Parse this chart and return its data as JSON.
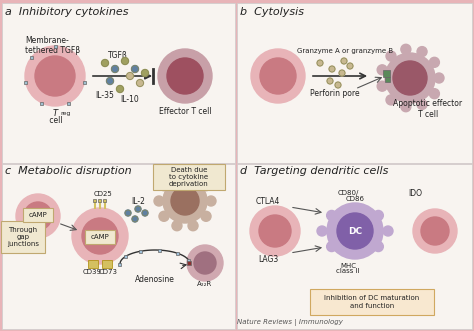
{
  "bg_color": "#f5f0eb",
  "panel_bg": "#f5f0eb",
  "title_fontsize": 8,
  "label_fontsize": 6.5,
  "small_fontsize": 5.5,
  "panels": {
    "a": {
      "title": "a  Inhibitory cytokines",
      "treg_label": "T",
      "treg_sub": "reg",
      "treg_label2": " cell",
      "effector_label": "Effector T cell",
      "membrane_label": "Membrane-\ntethered TGFβ",
      "tgfb_label": "TGFβ",
      "il35_label": "IL-35",
      "il10_label": "IL-10"
    },
    "b": {
      "title": "b  Cytolysis",
      "granzyme_label": "Granzyme A or granzyme B",
      "perforin_label": "Perforin pore",
      "apoptotic_label": "Apoptotic effector\nT cell"
    },
    "c": {
      "title": "c  Metabolic disruption",
      "camp_label": "cAMP",
      "gap_label": "Through\ngap\njunctions",
      "cd25_label": "CD25",
      "cd39_label": "CD39",
      "cd73_label": "CD73",
      "il2_label": "IL-2",
      "a2ar_label": "A₂₂R",
      "adenosine_label": "Adenosine",
      "death_label": "Death due\nto cytokine\ndeprivation"
    },
    "d": {
      "title": "d  Targeting dendritic cells",
      "ctla4_label": "CTLA4",
      "cd80_label": "CD80/",
      "cd86_label": "CD86",
      "lag3_label": "LAG3",
      "mhc_label": "MHC\nclass II",
      "ido_label": "IDO",
      "dc_label": "DC",
      "inhibition_label": "Inhibition of DC maturation\nand function"
    }
  },
  "colors": {
    "cell_outer": "#e8b4b8",
    "cell_inner": "#c97a82",
    "cell_dark_inner": "#8b3a42",
    "effector_outer": "#d4a0aa",
    "effector_inner": "#9e5a65",
    "apoptotic_outer": "#c8a0a8",
    "apoptotic_inner": "#8b5060",
    "dc_outer": "#b8a0c8",
    "dc_inner": "#7a5a9a",
    "blob_color": "#d4b8a0",
    "green_pore": "#5a8a5a",
    "arrow_color": "#555555",
    "dot_olive": "#a0a060",
    "dot_blue": "#6080a0",
    "dot_tan": "#c8b890",
    "cd_yellow": "#d4c060",
    "receptor_red": "#8a3030",
    "box_bg": "#f0e8d0",
    "box_border": "#c0a870",
    "inhibition_box": "#f8e8d0",
    "inhibition_border": "#d0a860"
  }
}
